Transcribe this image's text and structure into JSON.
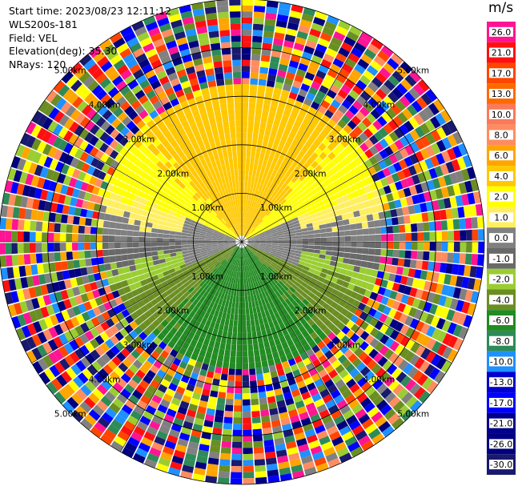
{
  "info": {
    "start_time": "Start time: 2023/08/23 12:11:12",
    "site": "WLS200s-181",
    "field": "Field: VEL",
    "elevation": "Elevation(deg): 35.30",
    "nrays": "NRays: 120"
  },
  "colorbar": {
    "unit": "m/s",
    "labels": [
      "26.0",
      "21.0",
      "17.0",
      "13.0",
      "10.0",
      "8.0",
      "6.0",
      "4.0",
      "2.0",
      "1.0",
      "0.0",
      "-1.0",
      "-2.0",
      "-4.0",
      "-6.0",
      "-8.0",
      "-10.0",
      "-13.0",
      "-17.0",
      "-21.0",
      "-26.0",
      "-30.0"
    ],
    "colors": [
      "#ff1493",
      "#ff1010",
      "#ff4500",
      "#ff6a00",
      "#fa7a5a",
      "#ff8c60",
      "#ffa500",
      "#ffc800",
      "#ffff00",
      "#ffef60",
      "#808080",
      "#696969",
      "#9acd32",
      "#6b8e23",
      "#228b22",
      "#2e8b57",
      "#1e90ff",
      "#0000cd",
      "#0000ff",
      "#00008b",
      "#000080",
      "#191970"
    ]
  },
  "chart_data": {
    "type": "heatmap",
    "title": "",
    "field": "VEL",
    "unit": "m/s",
    "nrays": 120,
    "elevation_deg": 35.3,
    "range_rings_km": [
      1.0,
      2.0,
      3.0,
      4.0,
      5.0
    ],
    "range_ring_labels": [
      "1.00km",
      "2.00km",
      "3.00km",
      "4.00km",
      "5.00km"
    ],
    "max_range_km": 5.0,
    "spokes_deg": [
      0,
      30,
      60,
      90,
      120,
      150,
      180,
      210,
      240,
      270,
      300,
      330
    ],
    "color_levels": [
      26.0,
      21.0,
      17.0,
      13.0,
      10.0,
      8.0,
      6.0,
      4.0,
      2.0,
      1.0,
      0.0,
      -1.0,
      -2.0,
      -4.0,
      -6.0,
      -8.0,
      -10.0,
      -13.0,
      -17.0,
      -21.0,
      -26.0,
      -30.0
    ]
  }
}
